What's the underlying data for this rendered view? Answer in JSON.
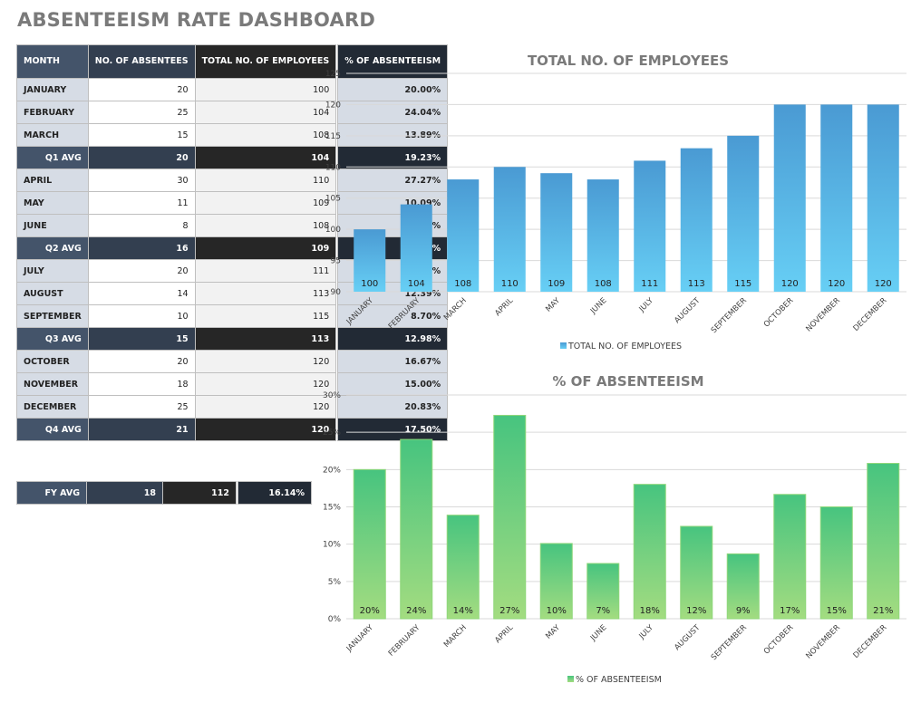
{
  "page": {
    "title": "ABSENTEEISM RATE DASHBOARD"
  },
  "table": {
    "headers": [
      "MONTH",
      "NO. OF ABSENTEES",
      "TOTAL NO. OF EMPLOYEES",
      "% OF ABSENTEEISM"
    ],
    "rows": [
      {
        "type": "month",
        "label": "JANUARY",
        "absentees": "20",
        "employees": "100",
        "pct": "20.00%"
      },
      {
        "type": "month",
        "label": "FEBRUARY",
        "absentees": "25",
        "employees": "104",
        "pct": "24.04%"
      },
      {
        "type": "month",
        "label": "MARCH",
        "absentees": "15",
        "employees": "108",
        "pct": "13.89%"
      },
      {
        "type": "avg",
        "label": "Q1 AVG",
        "absentees": "20",
        "employees": "104",
        "pct": "19.23%"
      },
      {
        "type": "month",
        "label": "APRIL",
        "absentees": "30",
        "employees": "110",
        "pct": "27.27%"
      },
      {
        "type": "month",
        "label": "MAY",
        "absentees": "11",
        "employees": "109",
        "pct": "10.09%"
      },
      {
        "type": "month",
        "label": "JUNE",
        "absentees": "8",
        "employees": "108",
        "pct": "7.41%"
      },
      {
        "type": "avg",
        "label": "Q2 AVG",
        "absentees": "16",
        "employees": "109",
        "pct": "14.98%"
      },
      {
        "type": "month",
        "label": "JULY",
        "absentees": "20",
        "employees": "111",
        "pct": "18.02%"
      },
      {
        "type": "month",
        "label": "AUGUST",
        "absentees": "14",
        "employees": "113",
        "pct": "12.39%"
      },
      {
        "type": "month",
        "label": "SEPTEMBER",
        "absentees": "10",
        "employees": "115",
        "pct": "8.70%"
      },
      {
        "type": "avg",
        "label": "Q3 AVG",
        "absentees": "15",
        "employees": "113",
        "pct": "12.98%"
      },
      {
        "type": "month",
        "label": "OCTOBER",
        "absentees": "20",
        "employees": "120",
        "pct": "16.67%"
      },
      {
        "type": "month",
        "label": "NOVEMBER",
        "absentees": "18",
        "employees": "120",
        "pct": "15.00%"
      },
      {
        "type": "month",
        "label": "DECEMBER",
        "absentees": "25",
        "employees": "120",
        "pct": "20.83%"
      },
      {
        "type": "avg",
        "label": "Q4 AVG",
        "absentees": "21",
        "employees": "120",
        "pct": "17.50%"
      }
    ],
    "fy": {
      "label": "FY AVG",
      "absentees": "18",
      "employees": "112",
      "pct": "16.14%"
    }
  },
  "colors": {
    "employees_top": "#4a9ad3",
    "employees_bottom": "#67cff5",
    "absent_top": "#47c47f",
    "absent_bottom": "#a3dc80",
    "absent_border": "#8fd77a",
    "grid": "#d9d9d9"
  },
  "chart_data": [
    {
      "type": "bar",
      "title": "TOTAL NO. OF EMPLOYEES",
      "categories": [
        "JANUARY",
        "FEBRUARY",
        "MARCH",
        "APRIL",
        "MAY",
        "JUNE",
        "JULY",
        "AUGUST",
        "SEPTEMBER",
        "OCTOBER",
        "NOVEMBER",
        "DECEMBER"
      ],
      "values": [
        100,
        104,
        108,
        110,
        109,
        108,
        111,
        113,
        115,
        120,
        120,
        120
      ],
      "data_labels": [
        "100",
        "104",
        "108",
        "110",
        "109",
        "108",
        "111",
        "113",
        "115",
        "120",
        "120",
        "120"
      ],
      "xlabel": "",
      "ylabel": "",
      "ylim": [
        90,
        125
      ],
      "yticks": [
        90,
        95,
        100,
        105,
        110,
        115,
        120,
        125
      ],
      "ytick_labels": [
        "90",
        "95",
        "100",
        "105",
        "110",
        "115",
        "120",
        "125"
      ],
      "grid": true,
      "legend": {
        "position": "bottom",
        "entries": [
          "TOTAL NO. OF EMPLOYEES"
        ]
      }
    },
    {
      "type": "bar",
      "title": "% OF ABSENTEEISM",
      "categories": [
        "JANUARY",
        "FEBRUARY",
        "MARCH",
        "APRIL",
        "MAY",
        "JUNE",
        "JULY",
        "AUGUST",
        "SEPTEMBER",
        "OCTOBER",
        "NOVEMBER",
        "DECEMBER"
      ],
      "values": [
        20.0,
        24.04,
        13.89,
        27.27,
        10.09,
        7.41,
        18.02,
        12.39,
        8.7,
        16.67,
        15.0,
        20.83
      ],
      "data_labels": [
        "20%",
        "24%",
        "14%",
        "27%",
        "10%",
        "7%",
        "18%",
        "12%",
        "9%",
        "17%",
        "15%",
        "21%"
      ],
      "xlabel": "",
      "ylabel": "",
      "ylim": [
        0,
        30
      ],
      "yticks": [
        0,
        5,
        10,
        15,
        20,
        25,
        30
      ],
      "ytick_labels": [
        "0%",
        "5%",
        "10%",
        "15%",
        "20%",
        "25%",
        "30%"
      ],
      "grid": true,
      "legend": {
        "position": "bottom",
        "entries": [
          "% OF ABSENTEEISM"
        ]
      }
    }
  ]
}
